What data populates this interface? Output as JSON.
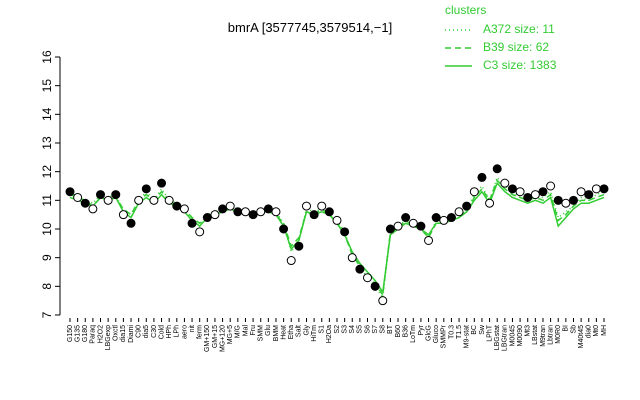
{
  "chart_data": {
    "type": "line",
    "title": "bmrA [3577745,3579514,−1]",
    "legend_title": "clusters",
    "legend_position": "top-right",
    "categories": [
      "G150",
      "G135",
      "G180",
      "Paraq",
      "H2O2",
      "LBGexp",
      "Oxctl",
      "dia15",
      "Diami",
      "C90",
      "dia5",
      "C30",
      "Cold",
      "HPh",
      "LPh",
      "aero",
      "nit",
      "ferm",
      "GM+150",
      "GM+15",
      "MG+120",
      "MG+5",
      "M/G",
      "Mal",
      "Fru",
      "SMM",
      "Glu",
      "BMM",
      "Heat",
      "Etha",
      "Salt",
      "Gly",
      "HiTm",
      "S1",
      "H2Oa",
      "S2",
      "S3",
      "S4",
      "S5",
      "S6",
      "S7",
      "S8",
      "BT",
      "B60",
      "B36",
      "LoTm",
      "Pyr",
      "GlcG",
      "Gluco",
      "SMMPr",
      "T0.3",
      "T1.5",
      "M9-stat",
      "BC",
      "Sw",
      "LPhT",
      "LBGstat",
      "LBGtran",
      "M0045",
      "M0090",
      "Mt3",
      "LBstat",
      "M9tran",
      "Lbtran",
      "M0R0",
      "BI",
      "Sb",
      "M40t45",
      "dia0",
      "Mt0",
      "MH"
    ],
    "values": [
      11.3,
      11.1,
      10.9,
      10.7,
      11.2,
      11.0,
      11.2,
      10.5,
      10.2,
      11.0,
      11.4,
      11.0,
      11.6,
      11.0,
      10.8,
      10.7,
      10.2,
      9.9,
      10.4,
      10.5,
      10.7,
      10.8,
      10.6,
      10.6,
      10.5,
      10.6,
      10.7,
      10.6,
      10.0,
      8.9,
      9.4,
      10.8,
      10.5,
      10.8,
      10.6,
      10.3,
      9.9,
      9.0,
      8.6,
      8.3,
      8.0,
      7.5,
      10.0,
      10.1,
      10.4,
      10.2,
      10.1,
      9.6,
      10.4,
      10.3,
      10.4,
      10.6,
      10.8,
      11.3,
      11.8,
      10.9,
      12.1,
      11.6,
      11.4,
      11.3,
      11.1,
      11.2,
      11.3,
      11.5,
      11.0,
      10.9,
      11.0,
      11.3,
      11.2,
      11.4,
      11.4
    ],
    "series": [
      {
        "name": "A372 size: 11",
        "color": "#33cc33",
        "dash": "dotted",
        "values": [
          11.3,
          11.1,
          11.0,
          10.9,
          11.2,
          11.1,
          11.2,
          10.6,
          10.4,
          11.0,
          11.3,
          11.0,
          11.4,
          11.0,
          10.9,
          10.7,
          10.3,
          10.1,
          10.5,
          10.6,
          10.7,
          10.8,
          10.7,
          10.6,
          10.6,
          10.7,
          10.7,
          10.6,
          10.2,
          9.2,
          9.6,
          10.7,
          10.6,
          10.7,
          10.6,
          10.3,
          9.9,
          9.1,
          8.7,
          8.3,
          8.0,
          7.6,
          9.9,
          10.1,
          10.3,
          10.2,
          10.1,
          9.7,
          10.3,
          10.3,
          10.4,
          10.5,
          10.7,
          11.2,
          11.5,
          11.0,
          11.8,
          11.5,
          11.3,
          11.1,
          11.0,
          11.1,
          11.1,
          11.3,
          10.4,
          10.6,
          10.8,
          11.1,
          11.0,
          11.2,
          11.3
        ]
      },
      {
        "name": "B39 size: 62",
        "color": "#33cc33",
        "dash": "dashed",
        "values": [
          11.2,
          11.1,
          11.0,
          10.8,
          11.1,
          11.0,
          11.1,
          10.7,
          10.5,
          11.0,
          11.2,
          11.0,
          11.3,
          11.0,
          10.8,
          10.7,
          10.4,
          10.2,
          10.4,
          10.5,
          10.6,
          10.7,
          10.6,
          10.6,
          10.5,
          10.6,
          10.7,
          10.5,
          10.2,
          9.4,
          9.7,
          10.6,
          10.5,
          10.7,
          10.5,
          10.2,
          9.8,
          9.1,
          8.7,
          8.4,
          8.1,
          7.7,
          9.9,
          10.0,
          10.3,
          10.1,
          10.0,
          9.7,
          10.2,
          10.2,
          10.3,
          10.5,
          10.6,
          11.1,
          11.4,
          11.0,
          11.7,
          11.4,
          11.2,
          11.1,
          11.0,
          11.1,
          11.0,
          11.2,
          10.3,
          10.5,
          10.8,
          11.0,
          11.0,
          11.1,
          11.2
        ]
      },
      {
        "name": "C3 size: 1383",
        "color": "#33cc33",
        "dash": "solid",
        "values": [
          11.1,
          11.0,
          10.9,
          10.8,
          11.1,
          11.0,
          11.1,
          10.6,
          10.4,
          10.9,
          11.1,
          10.9,
          11.2,
          10.9,
          10.8,
          10.6,
          10.3,
          10.1,
          10.4,
          10.5,
          10.6,
          10.7,
          10.6,
          10.6,
          10.5,
          10.6,
          10.6,
          10.5,
          10.1,
          9.3,
          9.6,
          10.6,
          10.5,
          10.6,
          10.5,
          10.2,
          9.8,
          9.2,
          8.8,
          8.5,
          8.2,
          7.8,
          9.8,
          10.0,
          10.2,
          10.1,
          10.0,
          9.8,
          10.2,
          10.2,
          10.3,
          10.4,
          10.6,
          11.0,
          11.3,
          10.9,
          11.6,
          11.3,
          11.1,
          11.0,
          10.9,
          11.0,
          10.9,
          11.1,
          10.1,
          10.4,
          10.7,
          10.9,
          10.9,
          11.0,
          11.1
        ]
      }
    ],
    "ylim": [
      7,
      16
    ],
    "yticks": [
      7,
      8,
      9,
      10,
      11,
      12,
      13,
      14,
      15,
      16
    ]
  }
}
